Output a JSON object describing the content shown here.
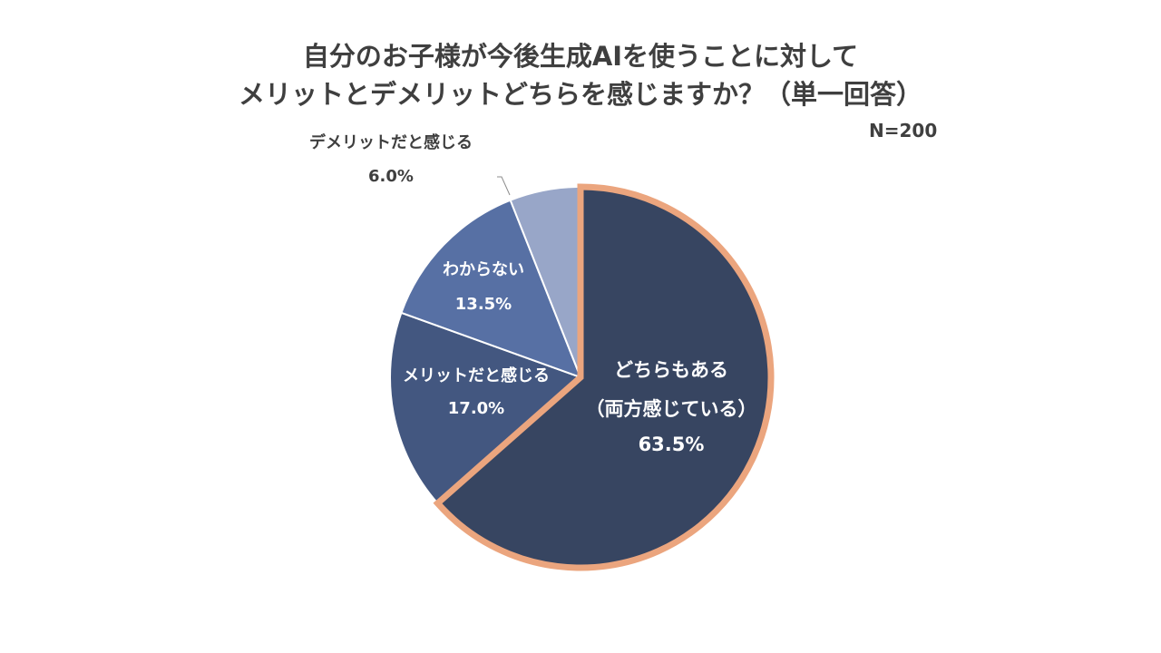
{
  "chart_data": {
    "type": "pie",
    "title": [
      "自分のお子様が今後生成AIを使うことに対して",
      "メリットとデメリットどちらを感じますか？（単一回答）"
    ],
    "note": "N=200",
    "start_angle": "top",
    "direction": "clockwise",
    "slices": [
      {
        "label": [
          "どちらもある",
          "（両方感じている）"
        ],
        "value": 63.5,
        "value_label": "63.5%",
        "color": "#374561",
        "highlight_border": "#eba57e",
        "label_color": "#ffffff"
      },
      {
        "label": [
          "メリットだと感じる"
        ],
        "value": 17.0,
        "value_label": "17.0%",
        "color": "#435780",
        "label_color": "#ffffff"
      },
      {
        "label": [
          "わからない"
        ],
        "value": 13.5,
        "value_label": "13.5%",
        "color": "#5770a4",
        "label_color": "#ffffff"
      },
      {
        "label": [
          "デメリットだと感じる"
        ],
        "value": 6.0,
        "value_label": "6.0%",
        "color": "#98a6c8",
        "label_color": "#3f3f3f",
        "label_outside": true
      }
    ]
  }
}
